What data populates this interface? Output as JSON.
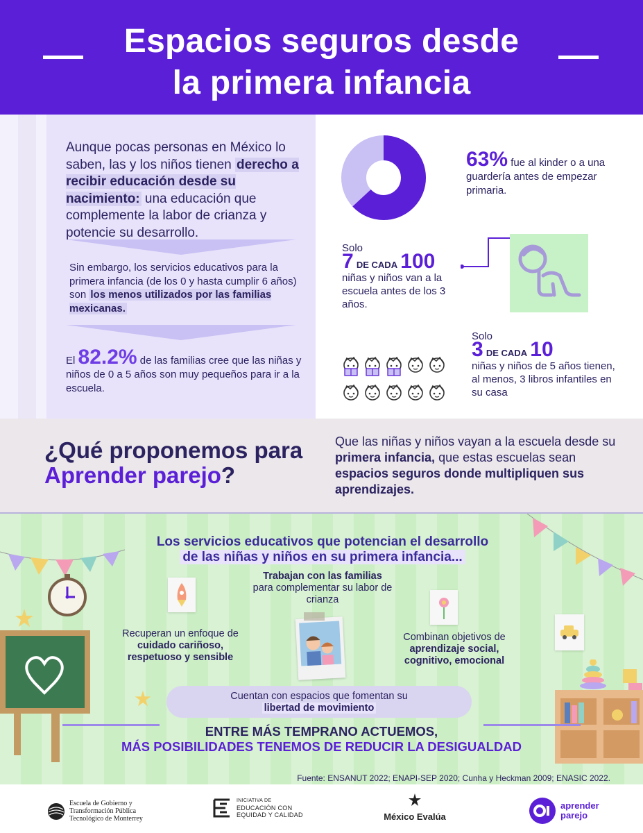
{
  "header": {
    "title_line1": "Espacios seguros desde",
    "title_line2": "la primera infancia"
  },
  "intro": {
    "para1_pre": "Aunque pocas personas en México lo saben, las y los niños tienen ",
    "para1_bold": "derecho a recibir educación desde su nacimiento:",
    "para1_post": " una educación que complemente la labor de crianza y potencie su desarrollo.",
    "para2_pre": "Sin embargo, los servicios educativos para la primera infancia (de los 0 y hasta cumplir 6 años) son ",
    "para2_bold": "los menos utilizados por las familias mexicanas.",
    "para3_pre": "El ",
    "para3_big": "82.2%",
    "para3_post": " de las familias cree que las niñas y niños de 0 a 5 años son muy pequeños para ir a la escuela."
  },
  "stats": {
    "kinder_percent": 63,
    "kinder_big": "63%",
    "kinder_text": "fue al kinder o a una guardería antes de empezar primaria.",
    "solo1_label": "Solo",
    "solo1_num": "7",
    "solo1_decada": "DE CADA",
    "solo1_total": "100",
    "solo1_text": "niñas y niños van a la escuela antes de los 3 años.",
    "solo2_label": "Solo",
    "solo2_num": "3",
    "solo2_decada": "DE CADA",
    "solo2_total": "10",
    "solo2_text": "niñas y niños de 5 años tienen, al menos, 3 libros infantiles en su casa",
    "books_highlighted": 3,
    "books_total": 10,
    "colors": {
      "primary": "#5a1fd6",
      "light": "#c9c0f3",
      "green_box": "#c7f2c8"
    }
  },
  "propose": {
    "question_pre": "¿Qué proponemos para ",
    "question_accent": "Aprender parejo",
    "question_post": "?",
    "answer_pre": "Que las niñas y niños vayan a la escuela desde su ",
    "answer_bold1": "primera infancia,",
    "answer_mid": " que estas escuelas sean ",
    "answer_bold2": "espacios seguros donde multipliquen sus aprendizajes."
  },
  "services": {
    "title_line1": "Los servicios educativos que potencian el desarrollo",
    "title_line2": "de las niñas y niños en su primera infancia...",
    "card1_bold": "Trabajan con las familias",
    "card1_rest": "para complementar su labor de crianza",
    "card2_pre": "Recuperan un enfoque de ",
    "card2_bold": "cuidado cariñoso, respetuoso y sensible",
    "card3_pre": "Combinan objetivos de ",
    "card3_bold": "aprendizaje social, cognitivo, emocional",
    "card4_pre": "Cuentan con espacios que fomentan su",
    "card4_bold": "libertad de movimiento",
    "cta_line1": "ENTRE MÁS TEMPRANO ACTUEMOS,",
    "cta_line2": "MÁS POSIBILIDADES TENEMOS DE REDUCIR LA DESIGUALDAD",
    "source": "Fuente: ENSANUT 2022; ENAPI-SEP 2020; Cunha y Heckman 2009; ENASIC 2022."
  },
  "footer": {
    "logo1_line1": "Escuela de Gobierno y",
    "logo1_line2": "Transformación Pública",
    "logo1_line3": "Tecnológico de Monterrey",
    "logo2_line1": "INICIATIVA DE",
    "logo2_line2": "EDUCACIÓN CON",
    "logo2_line3": "EQUIDAD Y CALIDAD",
    "logo3": "México Evalúa",
    "logo4_line1": "aprender",
    "logo4_line2": "parejo"
  }
}
